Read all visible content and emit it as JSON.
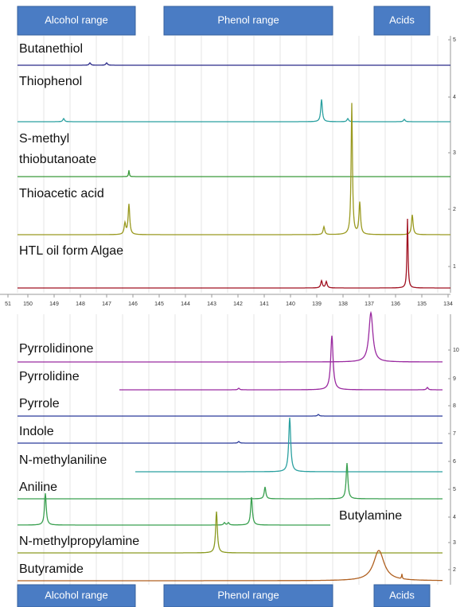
{
  "header": {
    "boxes": [
      "Alcohol range",
      "Phenol range",
      "Acids"
    ]
  },
  "top_panel": {
    "labels": [
      "Butanethiol",
      "Thiophenol",
      "S-methyl",
      "thiobutanoate",
      "Thioacetic acid",
      "HTL oil form Algae"
    ],
    "x_ticks": [
      "51",
      "150",
      "149",
      "148",
      "147",
      "146",
      "145",
      "144",
      "143",
      "142",
      "141",
      "140",
      "139",
      "138",
      "137",
      "136",
      "135",
      "134"
    ],
    "y_ticks": [
      "5",
      "4",
      "3",
      "2",
      "1"
    ]
  },
  "bottom_panel": {
    "labels": [
      "Pyrrolidinone",
      "Pyrrolidine",
      "Pyrrole",
      "Indole",
      "N-methylaniline",
      "Aniline",
      "Butylamine",
      "N-methylpropylamine",
      "Butyramide"
    ],
    "y_ticks": [
      "10",
      "9",
      "8",
      "7",
      "6",
      "5",
      "4",
      "3",
      "2"
    ]
  },
  "footer": {
    "boxes": [
      "Alcohol range",
      "Phenol range",
      "Acids"
    ]
  }
}
